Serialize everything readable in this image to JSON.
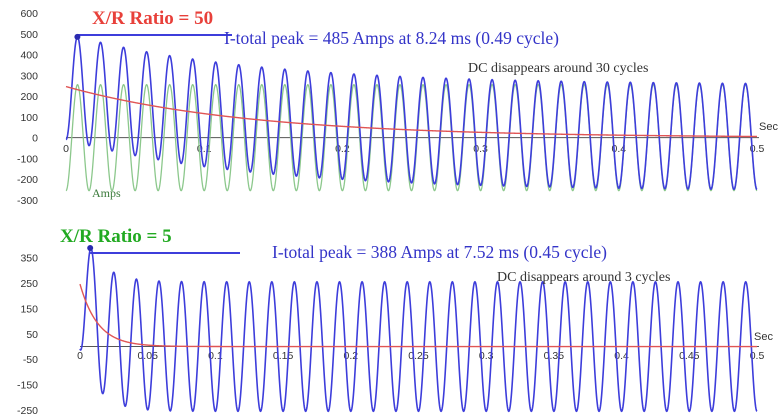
{
  "chart_data": [
    {
      "type": "line",
      "title": "X/R Ratio = 50",
      "title_color": "#e8403a",
      "annotation_peak": "I-total peak = 485 Amps at 8.24 ms (0.49 cycle)",
      "annotation_dc": "DC disappears around 30 cycles",
      "ylabel": "Amps",
      "x_axis_label": "Sec",
      "ylim": [
        -300,
        600
      ],
      "yticks": [
        "-300",
        "-200",
        "-100",
        "0",
        "100",
        "200",
        "300",
        "400",
        "500",
        "600"
      ],
      "xlim": [
        0,
        0.5
      ],
      "xticks": [
        "0",
        "0.1",
        "0.2",
        "0.3",
        "0.4",
        "0.5"
      ],
      "grid": false,
      "series": [
        {
          "key": "total",
          "color": "#3d3ddb",
          "frequency_hz": 60,
          "ac_amplitude": 255,
          "dc_initial": 246,
          "dc_time_constant_s": 0.1326,
          "peak_value": 485,
          "peak_time_s": 0.00824
        },
        {
          "key": "ac",
          "color": "#8cc88c",
          "frequency_hz": 60,
          "ac_amplitude": 255
        },
        {
          "key": "dc",
          "color": "#e05555",
          "dc_initial": 246,
          "dc_time_constant_s": 0.1326
        }
      ]
    },
    {
      "type": "line",
      "title": "X/R Ratio = 5",
      "title_color": "#22aa22",
      "annotation_peak": "I-total peak = 388 Amps at 7.52 ms (0.45 cycle)",
      "annotation_dc": "DC disappears around 3 cycles",
      "x_axis_label": "Sec",
      "ylim": [
        -250,
        400
      ],
      "yticks": [
        "-250",
        "-150",
        "-50",
        "50",
        "150",
        "250",
        "350"
      ],
      "xlim": [
        0,
        0.5
      ],
      "xticks": [
        "0",
        "0.05",
        "0.1",
        "0.15",
        "0.2",
        "0.25",
        "0.3",
        "0.35",
        "0.4",
        "0.45",
        "0.5"
      ],
      "grid": false,
      "series": [
        {
          "key": "total",
          "color": "#3d3ddb",
          "frequency_hz": 60,
          "ac_amplitude": 255,
          "dc_initial": 246,
          "dc_time_constant_s": 0.01326,
          "peak_value": 388,
          "peak_time_s": 0.00752
        },
        {
          "key": "dc",
          "color": "#e05555",
          "dc_initial": 246,
          "dc_time_constant_s": 0.01326
        }
      ]
    }
  ]
}
